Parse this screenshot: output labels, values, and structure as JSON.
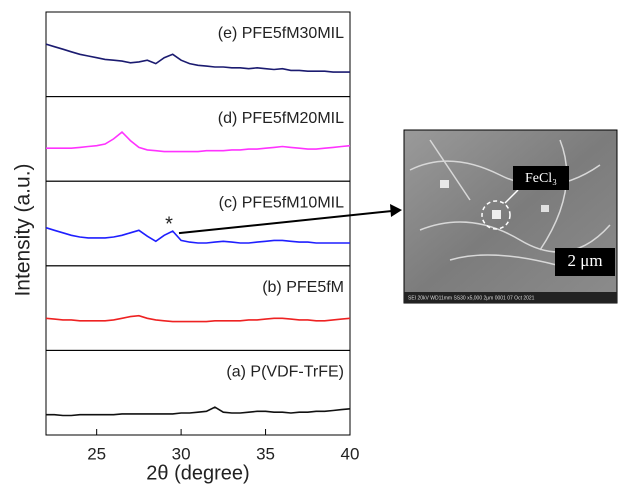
{
  "chart_data": {
    "type": "line",
    "xlabel": "2θ (degree)",
    "ylabel": "Intensity (a.u.)",
    "xlim": [
      22,
      40
    ],
    "xticks": [
      25,
      30,
      35,
      40
    ],
    "ylim": [
      0,
      10
    ],
    "x": [
      22,
      22.5,
      23,
      23.5,
      24,
      24.5,
      25,
      25.5,
      26,
      26.5,
      27,
      27.5,
      28,
      28.5,
      29,
      29.5,
      30,
      30.5,
      31,
      31.5,
      32,
      32.5,
      33,
      33.5,
      34,
      34.5,
      35,
      35.5,
      36,
      36.5,
      37,
      37.5,
      38,
      38.5,
      39,
      39.5,
      40
    ],
    "series": [
      {
        "name": "(e) PFE5fM30MIL",
        "color": "#1b1b70",
        "values": [
          6.2,
          5.9,
          5.6,
          5.3,
          5.0,
          4.8,
          4.6,
          4.4,
          4.3,
          4.2,
          4.0,
          4.1,
          4.3,
          3.9,
          4.6,
          5.0,
          4.3,
          3.9,
          3.7,
          3.6,
          3.5,
          3.5,
          3.4,
          3.4,
          3.3,
          3.4,
          3.3,
          3.2,
          3.3,
          3.1,
          3.1,
          3.0,
          3.0,
          3.0,
          2.9,
          2.9,
          2.9
        ]
      },
      {
        "name": "(d) PFE5fM20MIL",
        "color": "#ff33ff",
        "values": [
          3.9,
          3.9,
          3.9,
          3.9,
          4.0,
          4.1,
          4.2,
          4.4,
          5.0,
          5.8,
          4.8,
          4.0,
          3.7,
          3.6,
          3.5,
          3.5,
          3.5,
          3.5,
          3.5,
          3.6,
          3.6,
          3.6,
          3.7,
          3.7,
          3.8,
          3.8,
          3.9,
          4.0,
          4.1,
          4.0,
          3.9,
          3.8,
          3.8,
          3.9,
          4.0,
          4.1,
          4.2
        ]
      },
      {
        "name": "(c) PFE5fM10MIL",
        "color": "#1f1fff",
        "values": [
          4.5,
          4.2,
          3.9,
          3.6,
          3.4,
          3.3,
          3.3,
          3.3,
          3.4,
          3.6,
          3.9,
          4.2,
          3.5,
          2.9,
          3.6,
          4.1,
          3.0,
          2.8,
          2.7,
          2.7,
          2.8,
          2.9,
          2.8,
          2.7,
          2.7,
          2.8,
          2.9,
          3.0,
          3.0,
          2.9,
          2.8,
          2.8,
          2.7,
          2.7,
          2.7,
          2.7,
          2.7
        ]
      },
      {
        "name": "(b) PFE5fM",
        "color": "#ee2222",
        "values": [
          3.8,
          3.7,
          3.6,
          3.6,
          3.5,
          3.5,
          3.5,
          3.5,
          3.6,
          3.8,
          4.0,
          4.1,
          3.8,
          3.6,
          3.5,
          3.4,
          3.4,
          3.4,
          3.4,
          3.4,
          3.5,
          3.5,
          3.5,
          3.5,
          3.6,
          3.6,
          3.7,
          3.8,
          3.8,
          3.7,
          3.6,
          3.6,
          3.5,
          3.5,
          3.6,
          3.7,
          3.8
        ]
      },
      {
        "name": "(a) P(VDF-TrFE)",
        "color": "#111111",
        "values": [
          2.4,
          2.4,
          2.3,
          2.3,
          2.4,
          2.4,
          2.4,
          2.4,
          2.4,
          2.5,
          2.5,
          2.5,
          2.5,
          2.5,
          2.5,
          2.5,
          2.6,
          2.6,
          2.7,
          2.8,
          3.3,
          2.7,
          2.6,
          2.6,
          2.7,
          2.8,
          2.8,
          2.7,
          2.7,
          2.6,
          2.7,
          2.7,
          2.8,
          2.8,
          2.9,
          3.0,
          3.1
        ]
      }
    ],
    "annotation": "*"
  },
  "inset": {
    "label": "FeCl₃",
    "scale_bar": "2 μm",
    "info": "SEI  20kV  WD11mm  SS30  x5,000  2μm  0001  07 Oct 2021"
  }
}
